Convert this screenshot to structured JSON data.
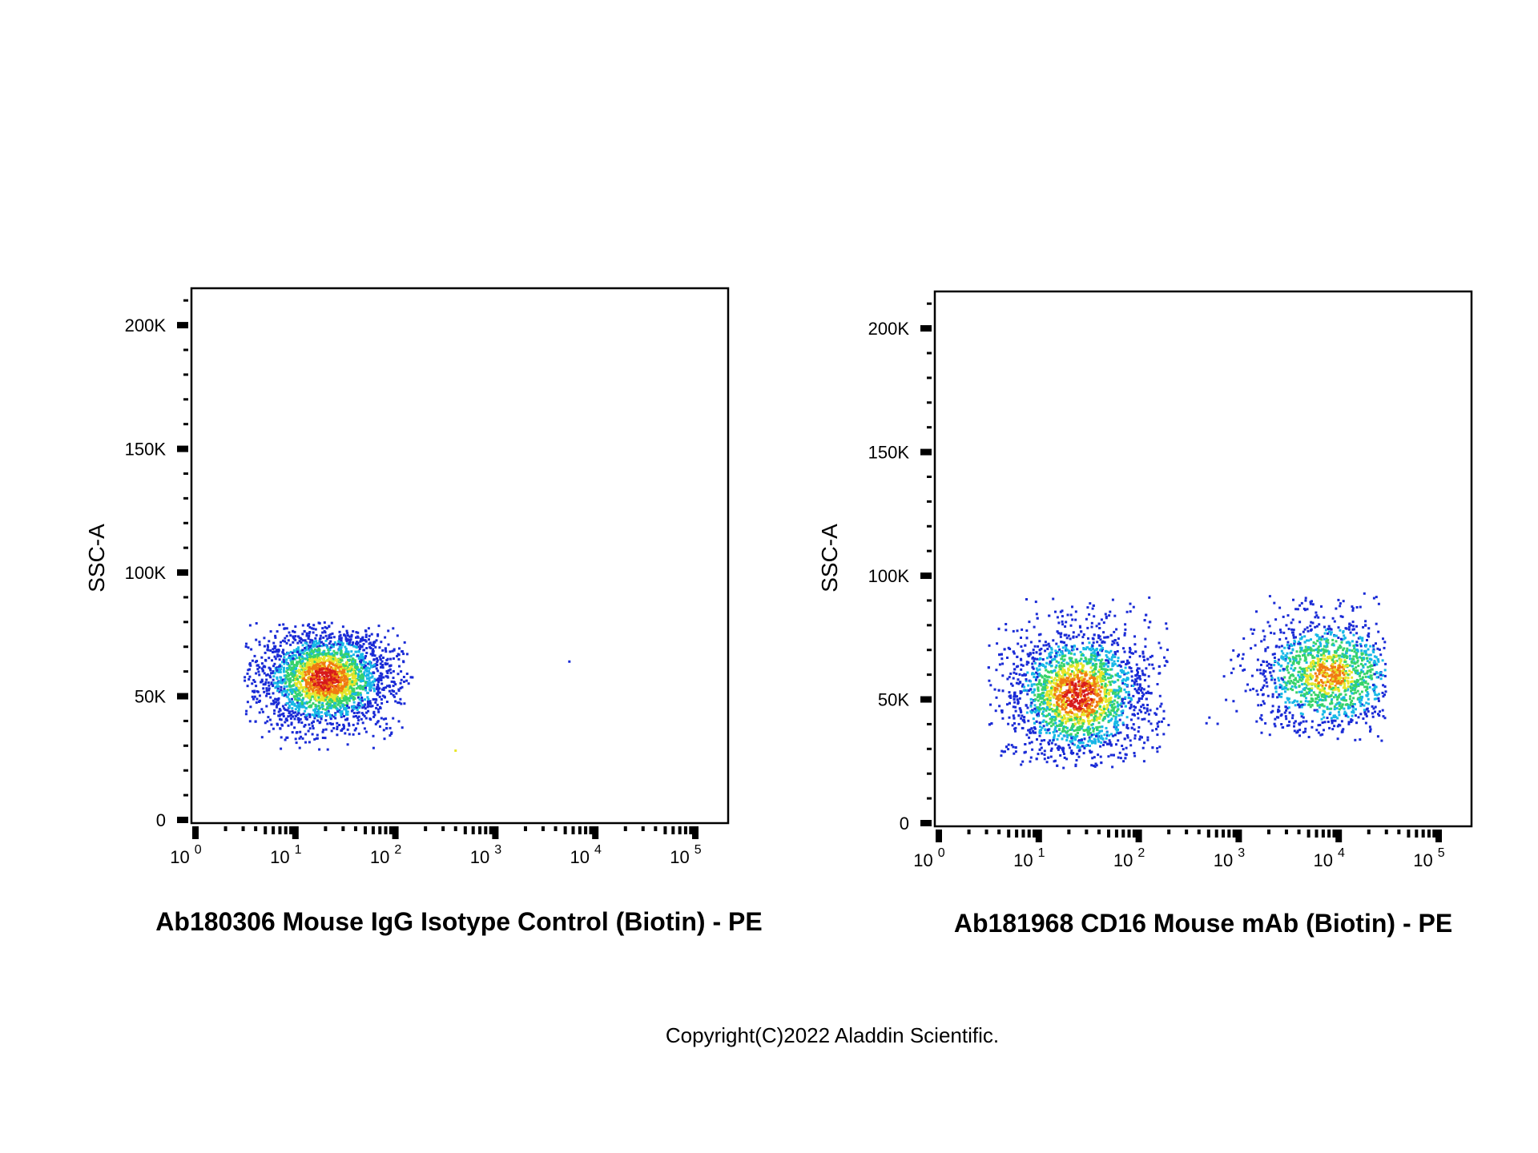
{
  "chart_data": [
    {
      "type": "scatter",
      "plot_style": "pseudocolor density dot plot",
      "xlabel": "Ab180306 Mouse IgG Isotype Control (Biotin) - PE",
      "ylabel": "SSC-A",
      "x_scale": "log",
      "xlim": [
        1,
        100000
      ],
      "ylim": [
        0,
        215000
      ],
      "x_ticks": [
        {
          "base": "10",
          "exp": "0"
        },
        {
          "base": "10",
          "exp": "1"
        },
        {
          "base": "10",
          "exp": "2"
        },
        {
          "base": "10",
          "exp": "3"
        },
        {
          "base": "10",
          "exp": "4"
        },
        {
          "base": "10",
          "exp": "5"
        }
      ],
      "y_ticks": [
        {
          "label": "0",
          "value": 0
        },
        {
          "label": "50K",
          "value": 50000
        },
        {
          "label": "100K",
          "value": 100000
        },
        {
          "label": "150K",
          "value": 150000
        },
        {
          "label": "200K",
          "value": 200000
        }
      ],
      "populations": [
        {
          "name": "",
          "x_center": 20,
          "x_range": [
            3,
            150
          ],
          "y_center": 57000,
          "y_range": [
            28000,
            80000
          ],
          "density": "high"
        }
      ],
      "outliers": [
        {
          "x": 5500,
          "y": 64000
        },
        {
          "x": 400,
          "y": 28000
        }
      ],
      "grid": false,
      "colormap": [
        "#1a2bd6",
        "#17b8e6",
        "#37d36a",
        "#e8e62a",
        "#f07a12",
        "#d7191c"
      ]
    },
    {
      "type": "scatter",
      "plot_style": "pseudocolor density dot plot",
      "xlabel": "Ab181968 CD16 Mouse mAb (Biotin) - PE",
      "ylabel": "SSC-A",
      "x_scale": "log",
      "xlim": [
        1,
        100000
      ],
      "ylim": [
        0,
        215000
      ],
      "x_ticks": [
        {
          "base": "10",
          "exp": "0"
        },
        {
          "base": "10",
          "exp": "1"
        },
        {
          "base": "10",
          "exp": "2"
        },
        {
          "base": "10",
          "exp": "3"
        },
        {
          "base": "10",
          "exp": "4"
        },
        {
          "base": "10",
          "exp": "5"
        }
      ],
      "y_ticks": [
        {
          "label": "0",
          "value": 0
        },
        {
          "label": "50K",
          "value": 50000
        },
        {
          "label": "100K",
          "value": 100000
        },
        {
          "label": "150K",
          "value": 150000
        },
        {
          "label": "200K",
          "value": 200000
        }
      ],
      "populations": [
        {
          "name": "",
          "x_center": 25,
          "x_range": [
            3,
            200
          ],
          "y_center": 52000,
          "y_range": [
            22000,
            92000
          ],
          "density": "high"
        },
        {
          "name": "",
          "x_center": 8000,
          "x_range": [
            400,
            30000
          ],
          "y_center": 60000,
          "y_range": [
            33000,
            93000
          ],
          "density": "medium"
        }
      ],
      "grid": false,
      "colormap": [
        "#1a2bd6",
        "#17b8e6",
        "#37d36a",
        "#e8e62a",
        "#f07a12",
        "#d7191c"
      ]
    }
  ],
  "copyright": "Copyright(C)2022 Aladdin Scientific."
}
